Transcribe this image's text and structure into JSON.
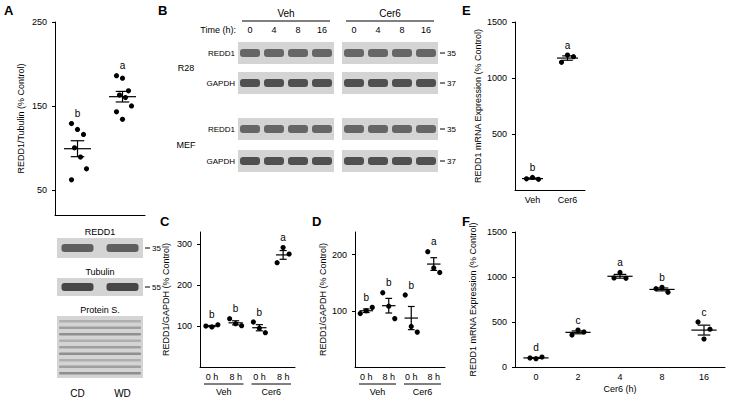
{
  "chart_data": [
    {
      "title": "A",
      "type": "scatter",
      "categories": [
        "CD",
        "WD"
      ],
      "values": [
        [
          129,
          122,
          116,
          100,
          89,
          75,
          62
        ],
        [
          186,
          183,
          168,
          163,
          160,
          150,
          143,
          134
        ]
      ],
      "mean": [
        99,
        161
      ],
      "sem": [
        9.5,
        6.3
      ],
      "annotations": [
        "b",
        "a"
      ],
      "ylabel": "REDD1/Tubulin (% Control)",
      "ylim": [
        20,
        250
      ],
      "yticks": [
        50,
        150,
        250
      ],
      "grid": false,
      "tick_labels": "y",
      "color": "#000000",
      "marker": "circle"
    },
    {
      "title": "C",
      "type": "scatter",
      "categories": [
        "0 h",
        "8 h",
        "0 h",
        "8 h"
      ],
      "group": [
        "Veh",
        "Veh",
        "Cer6",
        "Cer6"
      ],
      "values": [
        [
          100,
          98,
          103
        ],
        [
          118,
          106,
          101
        ],
        [
          110,
          95,
          84
        ],
        [
          255,
          292,
          276
        ]
      ],
      "mean": [
        100,
        108,
        96,
        274
      ],
      "sem": [
        1.5,
        5,
        7.5,
        10.7
      ],
      "annotations": [
        "b",
        "b",
        "b",
        "a"
      ],
      "ylabel": "REDD1/GAPDH (% Control)",
      "ylim": [
        0,
        330
      ],
      "yticks": [
        100,
        200,
        300
      ],
      "grid": false,
      "color": "#000000",
      "marker": "circle"
    },
    {
      "title": "D",
      "type": "scatter",
      "categories": [
        "0 h",
        "8 h",
        "0 h",
        "8 h"
      ],
      "group": [
        "Veh",
        "Veh",
        "Cer6",
        "Cer6"
      ],
      "values": [
        [
          95,
          100,
          106
        ],
        [
          132,
          108,
          86
        ],
        [
          128,
          72,
          62
        ],
        [
          205,
          176,
          168
        ]
      ],
      "mean": [
        100,
        109,
        87,
        183
      ],
      "sem": [
        3.2,
        13,
        20.6,
        11.3
      ],
      "annotations": [
        "b",
        "b",
        "b",
        "a"
      ],
      "ylabel": "REDD1/GAPDH (% Control)",
      "ylim": [
        0,
        240
      ],
      "yticks": [
        100,
        200
      ],
      "grid": false,
      "color": "#000000",
      "marker": "circle"
    },
    {
      "title": "E",
      "type": "scatter",
      "categories": [
        "Veh",
        "Cer6"
      ],
      "values": [
        [
          100,
          112,
          95
        ],
        [
          1140,
          1205,
          1190
        ]
      ],
      "mean": [
        102,
        1178
      ],
      "sem": [
        5,
        19.6
      ],
      "annotations": [
        "b",
        "a"
      ],
      "ylabel": "REDD1 mRNA Expression (% Control)",
      "ylim": [
        0,
        1500
      ],
      "yticks": [
        500,
        1000,
        1500
      ],
      "grid": false,
      "color": "#000000",
      "marker": "circle"
    },
    {
      "title": "F",
      "type": "scatter",
      "categories": [
        "0",
        "2",
        "4",
        "8",
        "16"
      ],
      "values": [
        [
          100,
          92,
          110
        ],
        [
          355,
          410,
          390
        ],
        [
          990,
          1050,
          985
        ],
        [
          870,
          885,
          830
        ],
        [
          500,
          310,
          420
        ]
      ],
      "mean": [
        101,
        385,
        1008,
        862,
        410
      ],
      "sem": [
        5,
        16,
        21,
        16,
        55
      ],
      "annotations": [
        "d",
        "c",
        "a",
        "b",
        "c"
      ],
      "xlabel": "Cer6 (h)",
      "ylabel": "REDD1 mRNA Expression (% Control)",
      "ylim": [
        0,
        1500
      ],
      "yticks": [
        0,
        500,
        1000,
        1500
      ],
      "grid": false,
      "color": "#000000",
      "marker": "circle"
    }
  ],
  "blots": {
    "A": {
      "rows": [
        {
          "label": "REDD1",
          "mw": 35
        },
        {
          "label": "Tubulin",
          "mw": 55
        },
        {
          "label": "Protein S."
        }
      ]
    },
    "B": {
      "title": "B",
      "time_label": "Time (h):",
      "conditions": [
        "Veh",
        "Cer6"
      ],
      "times": [
        "0",
        "4",
        "8",
        "16"
      ],
      "cell_lines": [
        {
          "name": "R28",
          "rows": [
            {
              "label": "REDD1",
              "mw": 35
            },
            {
              "label": "GAPDH",
              "mw": 37
            }
          ]
        },
        {
          "name": "MEF",
          "rows": [
            {
              "label": "REDD1",
              "mw": 35
            },
            {
              "label": "GAPDH",
              "mw": 37
            }
          ]
        }
      ]
    }
  }
}
